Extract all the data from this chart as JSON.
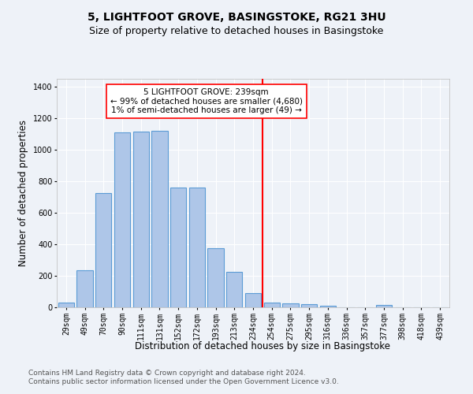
{
  "title1": "5, LIGHTFOOT GROVE, BASINGSTOKE, RG21 3HU",
  "title2": "Size of property relative to detached houses in Basingstoke",
  "xlabel": "Distribution of detached houses by size in Basingstoke",
  "ylabel": "Number of detached properties",
  "footer1": "Contains HM Land Registry data © Crown copyright and database right 2024.",
  "footer2": "Contains public sector information licensed under the Open Government Licence v3.0.",
  "bin_labels": [
    "29sqm",
    "49sqm",
    "70sqm",
    "90sqm",
    "111sqm",
    "131sqm",
    "152sqm",
    "172sqm",
    "193sqm",
    "213sqm",
    "234sqm",
    "254sqm",
    "275sqm",
    "295sqm",
    "316sqm",
    "336sqm",
    "357sqm",
    "377sqm",
    "398sqm",
    "418sqm",
    "439sqm"
  ],
  "bar_heights": [
    30,
    235,
    725,
    1110,
    1115,
    1120,
    760,
    760,
    375,
    225,
    90,
    30,
    25,
    20,
    10,
    0,
    0,
    15,
    0,
    0,
    0
  ],
  "bar_color": "#aec6e8",
  "bar_edge_color": "#5b9bd5",
  "red_line_x": 10.5,
  "red_line_label": "5 LIGHTFOOT GROVE: 239sqm",
  "annotation_line2": "← 99% of detached houses are smaller (4,680)",
  "annotation_line3": "1% of semi-detached houses are larger (49) →",
  "ylim": [
    0,
    1450
  ],
  "yticks": [
    0,
    200,
    400,
    600,
    800,
    1000,
    1200,
    1400
  ],
  "background_color": "#eef2f8",
  "grid_color": "#ffffff",
  "title1_fontsize": 10,
  "title2_fontsize": 9,
  "xlabel_fontsize": 8.5,
  "ylabel_fontsize": 8.5,
  "tick_fontsize": 7,
  "footer_fontsize": 6.5,
  "annot_fontsize": 7.5
}
